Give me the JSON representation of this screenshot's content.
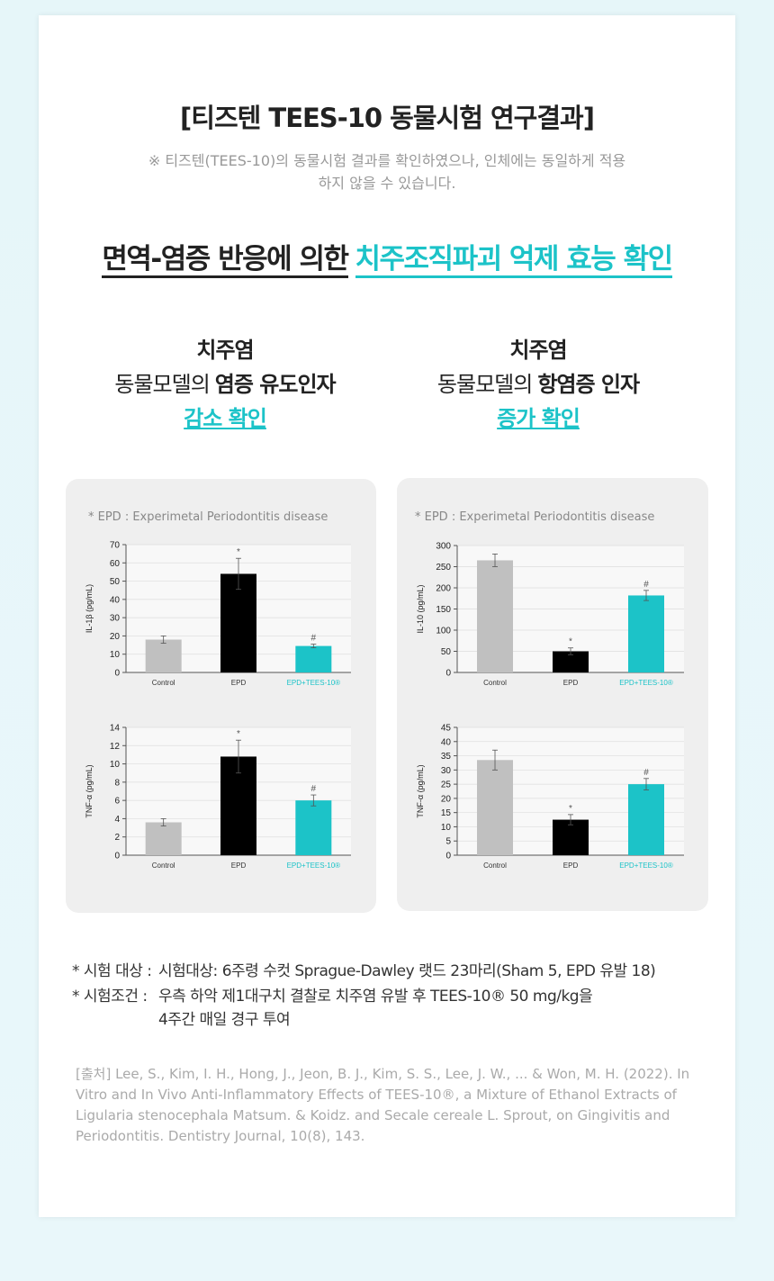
{
  "header": {
    "title": "[티즈텐 TEES-10 동물시험 연구결과]",
    "note_lines": [
      "※ 티즈텐(TEES-10)의 동물시험 결과를 확인하였으나, 인체에는 동일하게 적용",
      "하지 않을 수 있습니다."
    ]
  },
  "headline": {
    "lead": "면역-염증 반응에 의한",
    "highlight": "치주조직파괴 억제 효능 확인"
  },
  "columns": [
    {
      "line1": "치주염",
      "plain": "동물모델의",
      "bold": "염증 유도인자",
      "result": "감소 확인"
    },
    {
      "line1": "치주염",
      "plain": "동물모델의",
      "bold": "항염증 인자",
      "result": "증가 확인"
    }
  ],
  "panels": [
    {
      "note": "* EPD : Experimetal Periodontitis disease"
    },
    {
      "note": "* EPD : Experimetal Periodontitis disease"
    }
  ],
  "chart_data": [
    {
      "type": "bar",
      "y_label": "IL-1β (pg/mL)",
      "categories": [
        "Control",
        "EPD",
        "EPD+TEES-10®"
      ],
      "category_colors": [
        "#333333",
        "#333333",
        "#1cc3c8"
      ],
      "values": [
        18,
        54,
        14.5
      ],
      "errors": [
        2,
        8.5,
        1
      ],
      "colors": [
        "#c0c0c0",
        "#000000",
        "#1cc3c8"
      ],
      "markers": [
        null,
        "*",
        "#"
      ],
      "ylim": [
        0,
        70
      ],
      "yticks": [
        0,
        10,
        20,
        30,
        40,
        50,
        60,
        70
      ],
      "grid": true
    },
    {
      "type": "bar",
      "y_label": "TNF-α (pg/mL)",
      "categories": [
        "Control",
        "EPD",
        "EPD+TEES-10®"
      ],
      "category_colors": [
        "#333333",
        "#333333",
        "#1cc3c8"
      ],
      "values": [
        3.6,
        10.8,
        6
      ],
      "errors": [
        0.4,
        1.8,
        0.6
      ],
      "colors": [
        "#c0c0c0",
        "#000000",
        "#1cc3c8"
      ],
      "markers": [
        null,
        "*",
        "#"
      ],
      "ylim": [
        0,
        14
      ],
      "yticks": [
        0,
        2,
        4,
        6,
        8,
        10,
        12,
        14
      ],
      "grid": true
    },
    {
      "type": "bar",
      "y_label": "IL-10 (pg/mL)",
      "categories": [
        "Control",
        "EPD",
        "EPD+TEES-10®"
      ],
      "category_colors": [
        "#333333",
        "#333333",
        "#1cc3c8"
      ],
      "values": [
        265,
        50,
        182
      ],
      "errors": [
        15,
        8,
        12
      ],
      "colors": [
        "#c0c0c0",
        "#000000",
        "#1cc3c8"
      ],
      "markers": [
        null,
        "*",
        "#"
      ],
      "ylim": [
        0,
        300
      ],
      "yticks": [
        0,
        50,
        100,
        150,
        200,
        250,
        300
      ],
      "grid": true
    },
    {
      "type": "bar",
      "y_label": "TNF-α (pg/mL)",
      "categories": [
        "Control",
        "EPD",
        "EPD+TEES-10®"
      ],
      "category_colors": [
        "#333333",
        "#333333",
        "#1cc3c8"
      ],
      "values": [
        33.5,
        12.5,
        25
      ],
      "errors": [
        3.5,
        1.8,
        2
      ],
      "colors": [
        "#c0c0c0",
        "#000000",
        "#1cc3c8"
      ],
      "markers": [
        null,
        "*",
        "#"
      ],
      "ylim": [
        0,
        45
      ],
      "yticks": [
        0,
        5,
        10,
        15,
        20,
        25,
        30,
        35,
        40,
        45
      ],
      "grid": true
    }
  ],
  "notes": [
    {
      "label": "* 시험 대상 :",
      "lines": [
        "시험대상: 6주령 수컷 Sprague-Dawley 랫드 23마리(Sham 5, EPD 유발 18)"
      ]
    },
    {
      "label": "* 시험조건 :",
      "lines": [
        "우측 하악 제1대구치 결찰로 치주염 유발 후 TEES-10® 50 mg/kg을",
        "4주간 매일 경구 투여"
      ]
    }
  ],
  "source": "[출처] Lee, S., Kim, I. H., Hong, J., Jeon, B. J., Kim, S. S., Lee, J. W., ... & Won, M. H. (2022). In Vitro and In Vivo Anti-Inflammatory Effects of TEES-10®, a Mixture of Ethanol Extracts of Ligularia stenocephala Matsum. & Koidz. and Secale cereale L. Sprout, on Gingivitis and Periodontitis. Dentistry Journal, 10(8), 143."
}
